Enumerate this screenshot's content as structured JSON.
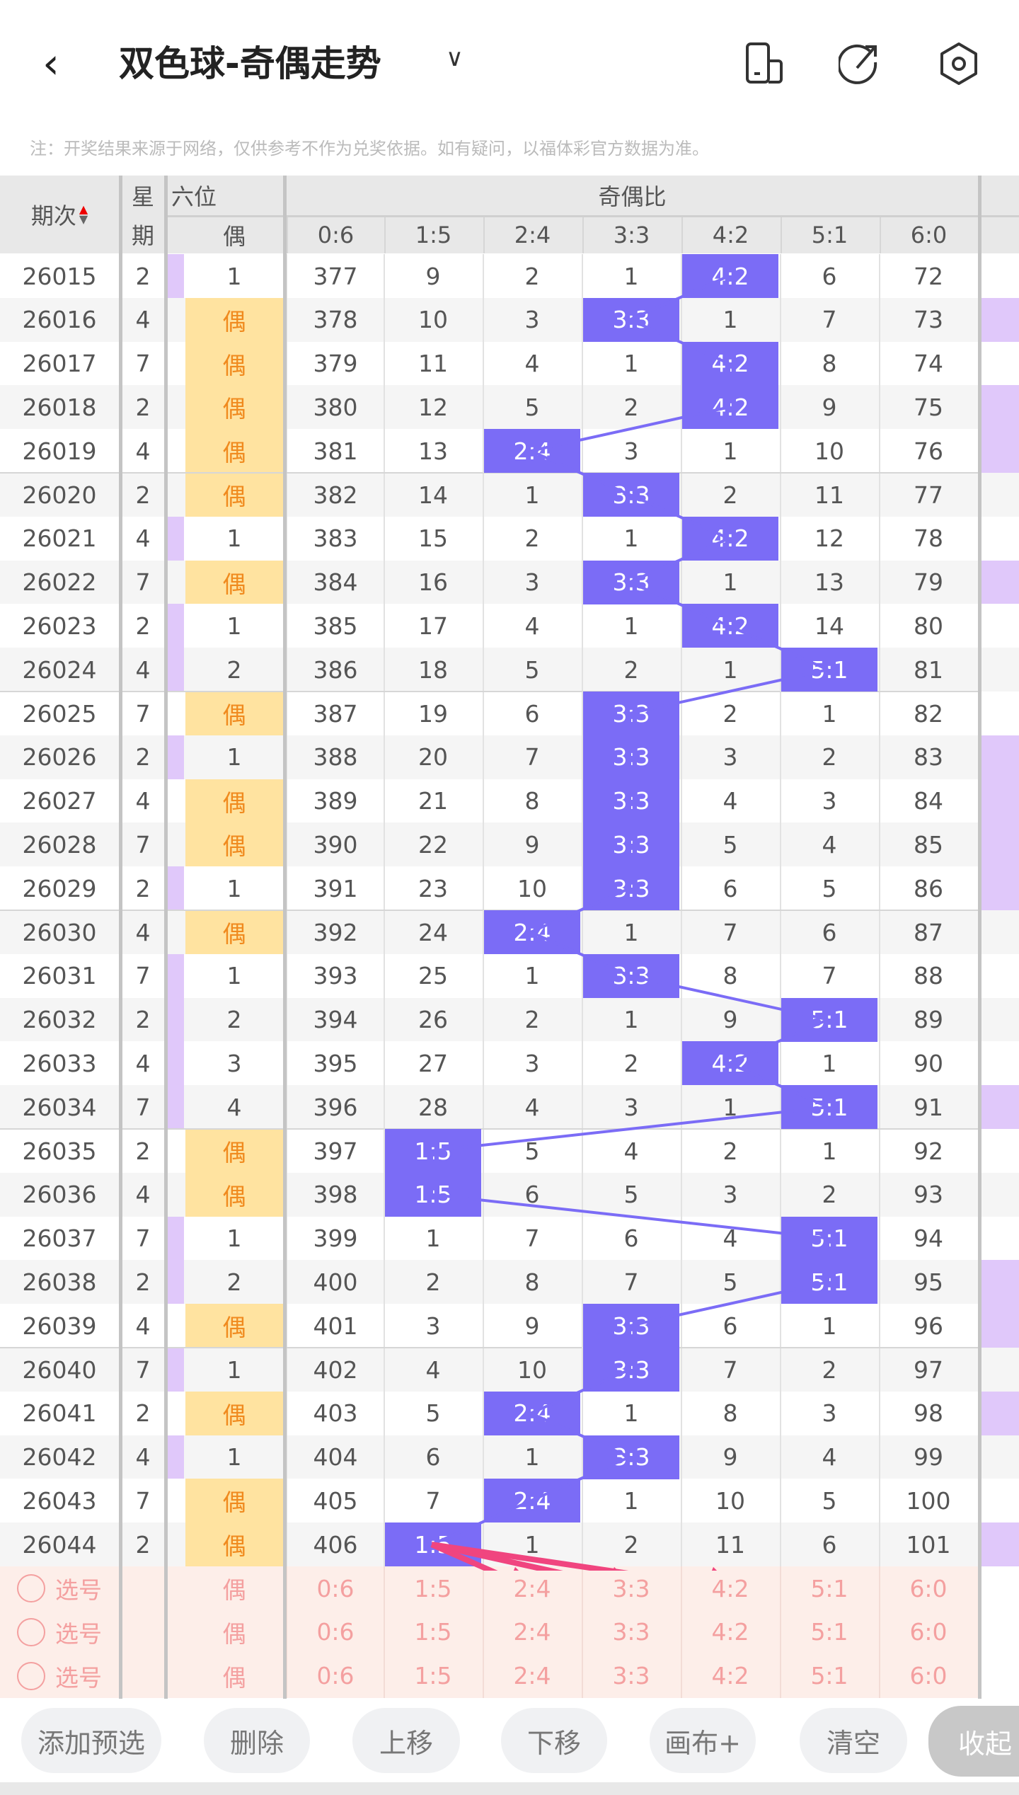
{
  "header": {
    "title": "双色球-奇偶走势",
    "note": "注：开奖结果来源于网络，仅供参考不作为兑奖依据。如有疑问，以福体彩官方数据为准。"
  },
  "table_header": {
    "period": "期次",
    "week_top": "星",
    "week_bottom": "期",
    "sixth": "六位",
    "sixth_sub": "偶",
    "ratio": "奇偶比",
    "ratio_cols": [
      "0:6",
      "1:5",
      "2:4",
      "3:3",
      "4:2",
      "5:1",
      "6:0"
    ]
  },
  "colors": {
    "hit": "#7b6cf6",
    "even": "#ffe3a0",
    "purple": "#e0c8fa",
    "arrow": "#f0457f"
  },
  "rows": [
    {
      "p": "26015",
      "w": "2",
      "e": "1",
      "v": [
        "377",
        "9",
        "2",
        "1",
        "4:2",
        "6",
        "72"
      ],
      "r": false
    },
    {
      "p": "26016",
      "w": "4",
      "e": "偶",
      "v": [
        "378",
        "10",
        "3",
        "3:3",
        "1",
        "7",
        "73"
      ],
      "r": true
    },
    {
      "p": "26017",
      "w": "7",
      "e": "偶",
      "v": [
        "379",
        "11",
        "4",
        "1",
        "4:2",
        "8",
        "74"
      ],
      "r": false
    },
    {
      "p": "26018",
      "w": "2",
      "e": "偶",
      "v": [
        "380",
        "12",
        "5",
        "2",
        "4:2",
        "9",
        "75"
      ],
      "r": true
    },
    {
      "p": "26019",
      "w": "4",
      "e": "偶",
      "v": [
        "381",
        "13",
        "2:4",
        "3",
        "1",
        "10",
        "76"
      ],
      "r": true
    },
    {
      "p": "26020",
      "w": "2",
      "e": "偶",
      "v": [
        "382",
        "14",
        "1",
        "3:3",
        "2",
        "11",
        "77"
      ],
      "r": false
    },
    {
      "p": "26021",
      "w": "4",
      "e": "1",
      "v": [
        "383",
        "15",
        "2",
        "1",
        "4:2",
        "12",
        "78"
      ],
      "r": false
    },
    {
      "p": "26022",
      "w": "7",
      "e": "偶",
      "v": [
        "384",
        "16",
        "3",
        "3:3",
        "1",
        "13",
        "79"
      ],
      "r": true
    },
    {
      "p": "26023",
      "w": "2",
      "e": "1",
      "v": [
        "385",
        "17",
        "4",
        "1",
        "4:2",
        "14",
        "80"
      ],
      "r": false
    },
    {
      "p": "26024",
      "w": "4",
      "e": "2",
      "v": [
        "386",
        "18",
        "5",
        "2",
        "1",
        "5:1",
        "81"
      ],
      "r": false
    },
    {
      "p": "26025",
      "w": "7",
      "e": "偶",
      "v": [
        "387",
        "19",
        "6",
        "3:3",
        "2",
        "1",
        "82"
      ],
      "r": false
    },
    {
      "p": "26026",
      "w": "2",
      "e": "1",
      "v": [
        "388",
        "20",
        "7",
        "3:3",
        "3",
        "2",
        "83"
      ],
      "r": true
    },
    {
      "p": "26027",
      "w": "4",
      "e": "偶",
      "v": [
        "389",
        "21",
        "8",
        "3:3",
        "4",
        "3",
        "84"
      ],
      "r": true
    },
    {
      "p": "26028",
      "w": "7",
      "e": "偶",
      "v": [
        "390",
        "22",
        "9",
        "3:3",
        "5",
        "4",
        "85"
      ],
      "r": true
    },
    {
      "p": "26029",
      "w": "2",
      "e": "1",
      "v": [
        "391",
        "23",
        "10",
        "3:3",
        "6",
        "5",
        "86"
      ],
      "r": true
    },
    {
      "p": "26030",
      "w": "4",
      "e": "偶",
      "v": [
        "392",
        "24",
        "2:4",
        "1",
        "7",
        "6",
        "87"
      ],
      "r": false
    },
    {
      "p": "26031",
      "w": "7",
      "e": "1",
      "v": [
        "393",
        "25",
        "1",
        "3:3",
        "8",
        "7",
        "88"
      ],
      "r": false
    },
    {
      "p": "26032",
      "w": "2",
      "e": "2",
      "v": [
        "394",
        "26",
        "2",
        "1",
        "9",
        "5:1",
        "89"
      ],
      "r": false
    },
    {
      "p": "26033",
      "w": "4",
      "e": "3",
      "v": [
        "395",
        "27",
        "3",
        "2",
        "4:2",
        "1",
        "90"
      ],
      "r": false
    },
    {
      "p": "26034",
      "w": "7",
      "e": "4",
      "v": [
        "396",
        "28",
        "4",
        "3",
        "1",
        "5:1",
        "91"
      ],
      "r": true
    },
    {
      "p": "26035",
      "w": "2",
      "e": "偶",
      "v": [
        "397",
        "1:5",
        "5",
        "4",
        "2",
        "1",
        "92"
      ],
      "r": false
    },
    {
      "p": "26036",
      "w": "4",
      "e": "偶",
      "v": [
        "398",
        "1:5",
        "6",
        "5",
        "3",
        "2",
        "93"
      ],
      "r": false
    },
    {
      "p": "26037",
      "w": "7",
      "e": "1",
      "v": [
        "399",
        "1",
        "7",
        "6",
        "4",
        "5:1",
        "94"
      ],
      "r": false
    },
    {
      "p": "26038",
      "w": "2",
      "e": "2",
      "v": [
        "400",
        "2",
        "8",
        "7",
        "5",
        "5:1",
        "95"
      ],
      "r": true
    },
    {
      "p": "26039",
      "w": "4",
      "e": "偶",
      "v": [
        "401",
        "3",
        "9",
        "3:3",
        "6",
        "1",
        "96"
      ],
      "r": true
    },
    {
      "p": "26040",
      "w": "7",
      "e": "1",
      "v": [
        "402",
        "4",
        "10",
        "3:3",
        "7",
        "2",
        "97"
      ],
      "r": false
    },
    {
      "p": "26041",
      "w": "2",
      "e": "偶",
      "v": [
        "403",
        "5",
        "2:4",
        "1",
        "8",
        "3",
        "98"
      ],
      "r": true
    },
    {
      "p": "26042",
      "w": "4",
      "e": "1",
      "v": [
        "404",
        "6",
        "1",
        "3:3",
        "9",
        "4",
        "99"
      ],
      "r": false
    },
    {
      "p": "26043",
      "w": "7",
      "e": "偶",
      "v": [
        "405",
        "7",
        "2:4",
        "1",
        "10",
        "5",
        "100"
      ],
      "r": false
    },
    {
      "p": "26044",
      "w": "2",
      "e": "偶",
      "v": [
        "406",
        "1:5",
        "1",
        "2",
        "11",
        "6",
        "101"
      ],
      "r": true
    }
  ],
  "select_rows": [
    {
      "label": "选号",
      "even": "偶",
      "v": [
        "0:6",
        "1:5",
        "2:4",
        "3:3",
        "4:2",
        "5:1",
        "6:0"
      ]
    },
    {
      "label": "选号",
      "even": "偶",
      "v": [
        "0:6",
        "1:5",
        "2:4",
        "3:3",
        "4:2",
        "5:1",
        "6:0"
      ]
    },
    {
      "label": "选号",
      "even": "偶",
      "v": [
        "0:6",
        "1:5",
        "2:4",
        "3:3",
        "4:2",
        "5:1",
        "6:0"
      ]
    }
  ],
  "buttons": {
    "add": "添加预选",
    "delete": "删除",
    "up": "上移",
    "down": "下移",
    "canvas": "画布+",
    "clear": "清空",
    "collapse": "收起"
  }
}
